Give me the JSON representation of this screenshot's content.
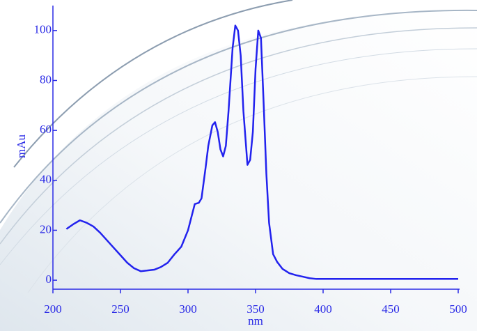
{
  "chart_data": {
    "type": "line",
    "x_label": "nm",
    "y_label": "mAu",
    "x": [
      210,
      215,
      220,
      225,
      230,
      235,
      240,
      245,
      250,
      255,
      260,
      265,
      270,
      275,
      280,
      285,
      290,
      295,
      300,
      305,
      308,
      310,
      313,
      315,
      318,
      320,
      322,
      324,
      326,
      328,
      330,
      333,
      335,
      337,
      339,
      341,
      344,
      346,
      348,
      350,
      352,
      354,
      356,
      358,
      360,
      363,
      366,
      370,
      375,
      380,
      385,
      390,
      395,
      400,
      450,
      500
    ],
    "series": [
      {
        "color": "#2222ee",
        "values": [
          20.5,
          22.4,
          24,
          23,
          21.5,
          19,
          16,
          13,
          10,
          7,
          4.8,
          3.6,
          3.9,
          4.2,
          5.3,
          7,
          10.4,
          13.4,
          20,
          30.5,
          31,
          32.8,
          45,
          53.8,
          62,
          63.3,
          59.4,
          52.4,
          49.6,
          53.8,
          67.8,
          93,
          102,
          100,
          90,
          67.8,
          46.2,
          48.2,
          59.4,
          84.6,
          100,
          97,
          70.6,
          42.6,
          23,
          10.4,
          7.3,
          4.5,
          2.8,
          2,
          1.4,
          0.8,
          0.5,
          0.5,
          0.5,
          0.5
        ]
      }
    ],
    "xlim": [
      200,
      500
    ],
    "ylim": [
      -3.6,
      110
    ],
    "xticks": [
      200,
      250,
      300,
      350,
      400,
      450,
      500
    ],
    "yticks": [
      0,
      20,
      40,
      60,
      80,
      100
    ]
  }
}
